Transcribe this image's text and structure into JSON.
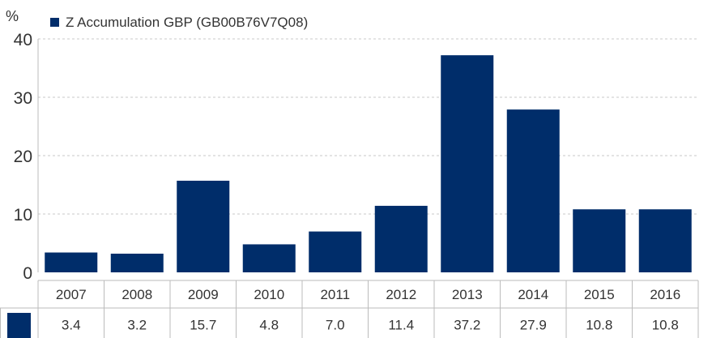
{
  "chart_data": {
    "type": "bar",
    "y_unit_label": "%",
    "legend": {
      "label": "Z Accumulation GBP (GB00B76V7Q08)",
      "placement": "top-left"
    },
    "categories": [
      "2007",
      "2008",
      "2009",
      "2010",
      "2011",
      "2012",
      "2013",
      "2014",
      "2015",
      "2016"
    ],
    "series": [
      {
        "name": "Z Accumulation GBP (GB00B76V7Q08)",
        "color": "#002d6a",
        "values": [
          3.4,
          3.2,
          15.7,
          4.8,
          7.0,
          11.4,
          37.2,
          27.9,
          10.8,
          10.8
        ]
      }
    ],
    "value_labels": [
      "3.4",
      "3.2",
      "15.7",
      "4.8",
      "7.0",
      "11.4",
      "37.2",
      "27.9",
      "10.8",
      "10.8"
    ],
    "yticks": [
      0,
      10,
      20,
      30,
      40
    ],
    "ylim": [
      0,
      40
    ],
    "grid": true,
    "data_table": true
  }
}
